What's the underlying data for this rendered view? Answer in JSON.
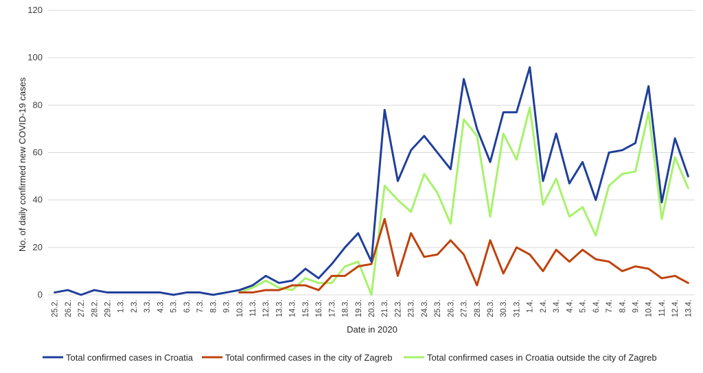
{
  "chart_data": {
    "type": "line",
    "xlabel": "Date in 2020",
    "ylabel": "No. of daily confirmed new COVID-19 cases",
    "ylim": [
      0,
      120
    ],
    "yticks": [
      0,
      20,
      40,
      60,
      80,
      100,
      120
    ],
    "grid": "horizontal",
    "legend_position": "bottom",
    "categories": [
      "25.2.",
      "26.2.",
      "27.2.",
      "28.2.",
      "29.2.",
      "1.3.",
      "2.3.",
      "3.3.",
      "4.3.",
      "5.3.",
      "6.3.",
      "7.3.",
      "8.3.",
      "9.3.",
      "10.3.",
      "11.3.",
      "12.3.",
      "13.3.",
      "14.3.",
      "15.3.",
      "16.3.",
      "17.3.",
      "18.3.",
      "19.3.",
      "20.3.",
      "21.3.",
      "22.3.",
      "23.3.",
      "24.3.",
      "25.3.",
      "26.3.",
      "27.3.",
      "28.3.",
      "29.3.",
      "30.3.",
      "31.3.",
      "1.4.",
      "2.4.",
      "3.4.",
      "4.4.",
      "5.4.",
      "6.4.",
      "7.4.",
      "8.4.",
      "9.4.",
      "10.4.",
      "11.4.",
      "12.4.",
      "13.4."
    ],
    "series": [
      {
        "name": "Total confirmed cases in Croatia",
        "color": "#1f3f9a",
        "values": [
          1,
          2,
          0,
          2,
          1,
          1,
          1,
          1,
          1,
          0,
          1,
          1,
          0,
          1,
          2,
          4,
          8,
          5,
          6,
          11,
          7,
          13,
          20,
          26,
          14,
          78,
          48,
          61,
          67,
          60,
          53,
          91,
          70,
          56,
          77,
          77,
          96,
          48,
          68,
          47,
          56,
          40,
          60,
          61,
          64,
          88,
          39,
          66,
          50
        ]
      },
      {
        "name": "Total confirmed cases in the city of Zagreb",
        "color": "#c0420c",
        "values": [
          null,
          null,
          null,
          null,
          null,
          null,
          null,
          null,
          null,
          null,
          null,
          null,
          null,
          null,
          1,
          1,
          2,
          2,
          4,
          4,
          2,
          8,
          8,
          12,
          13,
          32,
          8,
          26,
          16,
          17,
          23,
          17,
          4,
          23,
          9,
          20,
          17,
          10,
          19,
          14,
          19,
          15,
          14,
          10,
          12,
          11,
          7,
          8,
          5
        ]
      },
      {
        "name": "Total confirmed cases in Croatia outside the city of Zagreb",
        "color": "#a6f36a",
        "values": [
          null,
          null,
          null,
          null,
          null,
          null,
          null,
          null,
          null,
          null,
          null,
          null,
          null,
          null,
          1,
          3,
          6,
          3,
          2,
          7,
          5,
          5,
          12,
          14,
          0,
          46,
          40,
          35,
          51,
          43,
          30,
          74,
          67,
          33,
          68,
          57,
          79,
          38,
          49,
          33,
          37,
          25,
          46,
          51,
          52,
          77,
          32,
          58,
          45
        ]
      }
    ]
  }
}
